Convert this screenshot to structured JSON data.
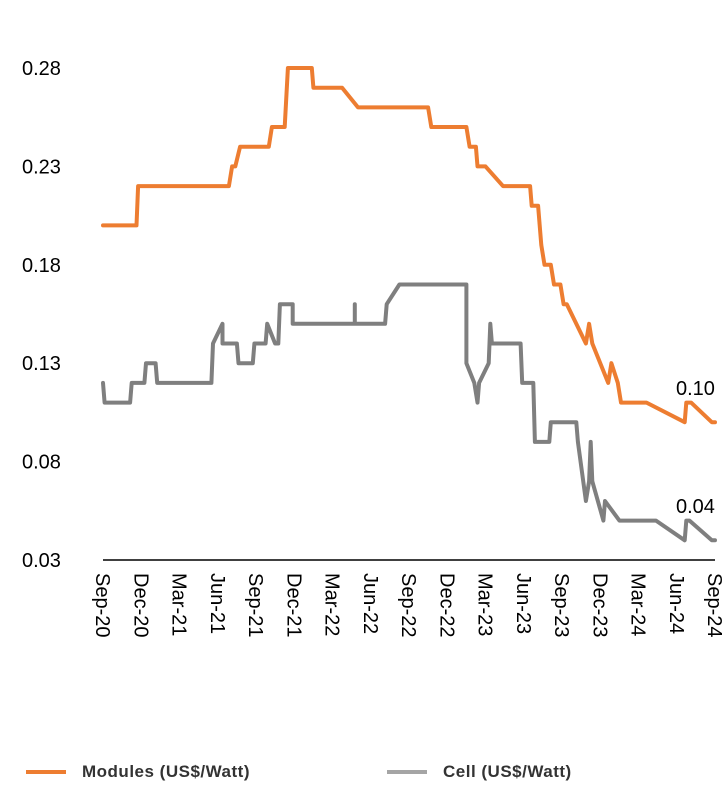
{
  "chart_data": {
    "type": "line",
    "ylim": [
      0.03,
      0.28
    ],
    "yticks": [
      "0.28",
      "0.23",
      "0.18",
      "0.13",
      "0.08",
      "0.03"
    ],
    "xticks": [
      "Sep-20",
      "Dec-20",
      "Mar-21",
      "Jun-21",
      "Sep-21",
      "Dec-21",
      "Mar-22",
      "Jun-22",
      "Sep-22",
      "Dec-22",
      "Mar-23",
      "Jun-23",
      "Sep-23",
      "Dec-23",
      "Mar-24",
      "Jun-24",
      "Sep-24"
    ],
    "end_labels": {
      "modules": "0.10",
      "cell": "0.04"
    },
    "series": [
      {
        "name": "Modules (US$/Watt)",
        "color": "#ED7D31",
        "points": [
          [
            0,
            0.2
          ],
          [
            1.05,
            0.2
          ],
          [
            1.1,
            0.22
          ],
          [
            1.3,
            0.22
          ],
          [
            2.5,
            0.22
          ],
          [
            2.6,
            0.22
          ],
          [
            3.0,
            0.22
          ],
          [
            3.2,
            0.22
          ],
          [
            3.3,
            0.22
          ],
          [
            3.4,
            0.22
          ],
          [
            3.85,
            0.22
          ],
          [
            3.95,
            0.22
          ],
          [
            4.05,
            0.23
          ],
          [
            4.15,
            0.23
          ],
          [
            4.3,
            0.24
          ],
          [
            4.4,
            0.24
          ],
          [
            5.2,
            0.24
          ],
          [
            5.3,
            0.25
          ],
          [
            5.5,
            0.25
          ],
          [
            5.6,
            0.25
          ],
          [
            5.7,
            0.25
          ],
          [
            5.8,
            0.28
          ],
          [
            6.0,
            0.28
          ],
          [
            6.55,
            0.28
          ],
          [
            6.6,
            0.27
          ],
          [
            6.75,
            0.27
          ],
          [
            7.4,
            0.27
          ],
          [
            7.5,
            0.27
          ],
          [
            8.0,
            0.26
          ],
          [
            8.15,
            0.26
          ],
          [
            9.4,
            0.26
          ],
          [
            9.5,
            0.26
          ],
          [
            10.2,
            0.26
          ],
          [
            10.3,
            0.25
          ],
          [
            10.5,
            0.25
          ],
          [
            10.65,
            0.25
          ],
          [
            11.25,
            0.25
          ],
          [
            11.4,
            0.25
          ],
          [
            11.5,
            0.24
          ],
          [
            11.7,
            0.24
          ],
          [
            11.75,
            0.23
          ],
          [
            12.0,
            0.23
          ],
          [
            12.55,
            0.22
          ],
          [
            12.7,
            0.22
          ],
          [
            12.75,
            0.22
          ],
          [
            12.8,
            0.22
          ],
          [
            13.0,
            0.22
          ],
          [
            13.05,
            0.22
          ],
          [
            13.2,
            0.22
          ],
          [
            13.4,
            0.22
          ],
          [
            13.45,
            0.21
          ],
          [
            13.65,
            0.21
          ],
          [
            13.75,
            0.19
          ],
          [
            13.85,
            0.18
          ],
          [
            13.95,
            0.18
          ],
          [
            14.05,
            0.18
          ],
          [
            14.15,
            0.17
          ],
          [
            14.35,
            0.17
          ],
          [
            14.45,
            0.16
          ],
          [
            14.55,
            0.16
          ],
          [
            15.15,
            0.14
          ],
          [
            15.25,
            0.15
          ],
          [
            15.35,
            0.14
          ],
          [
            15.85,
            0.12
          ],
          [
            15.95,
            0.13
          ],
          [
            16.15,
            0.12
          ],
          [
            16.25,
            0.11
          ],
          [
            16.45,
            0.11
          ],
          [
            17.05,
            0.11
          ],
          [
            18.25,
            0.1
          ],
          [
            18.3,
            0.11
          ],
          [
            18.45,
            0.11
          ],
          [
            19.1,
            0.1
          ],
          [
            19.2,
            0.1
          ]
        ]
      },
      {
        "name": "Cell (US$/Watt)",
        "color": "#7F7F7F",
        "points": [
          [
            0,
            0.12
          ],
          [
            0.05,
            0.11
          ],
          [
            0.85,
            0.11
          ],
          [
            0.9,
            0.12
          ],
          [
            1.2,
            0.12
          ],
          [
            1.3,
            0.12
          ],
          [
            1.35,
            0.13
          ],
          [
            1.65,
            0.13
          ],
          [
            1.7,
            0.12
          ],
          [
            2.2,
            0.12
          ],
          [
            2.8,
            0.12
          ],
          [
            3.3,
            0.12
          ],
          [
            3.35,
            0.12
          ],
          [
            3.4,
            0.12
          ],
          [
            3.45,
            0.14
          ],
          [
            3.75,
            0.15
          ],
          [
            3.75,
            0.14
          ],
          [
            4.2,
            0.14
          ],
          [
            4.25,
            0.13
          ],
          [
            4.7,
            0.13
          ],
          [
            4.75,
            0.14
          ],
          [
            5.1,
            0.14
          ],
          [
            5.15,
            0.15
          ],
          [
            5.4,
            0.14
          ],
          [
            5.45,
            0.14
          ],
          [
            5.5,
            0.14
          ],
          [
            5.55,
            0.16
          ],
          [
            5.95,
            0.16
          ],
          [
            5.95,
            0.15
          ],
          [
            6.6,
            0.15
          ],
          [
            7.0,
            0.15
          ],
          [
            7.6,
            0.15
          ],
          [
            7.9,
            0.15
          ],
          [
            7.9,
            0.16
          ],
          [
            7.9,
            0.15
          ],
          [
            8.85,
            0.15
          ],
          [
            8.9,
            0.16
          ],
          [
            9.3,
            0.17
          ],
          [
            11.25,
            0.17
          ],
          [
            11.4,
            0.17
          ],
          [
            11.4,
            0.13
          ],
          [
            11.65,
            0.12
          ],
          [
            11.75,
            0.11
          ],
          [
            11.8,
            0.12
          ],
          [
            12.1,
            0.13
          ],
          [
            12.15,
            0.15
          ],
          [
            12.2,
            0.14
          ],
          [
            13.1,
            0.14
          ],
          [
            13.15,
            0.12
          ],
          [
            13.5,
            0.12
          ],
          [
            13.55,
            0.09
          ],
          [
            14.0,
            0.09
          ],
          [
            14.05,
            0.1
          ],
          [
            14.85,
            0.1
          ],
          [
            14.9,
            0.09
          ],
          [
            15.15,
            0.06
          ],
          [
            15.25,
            0.07
          ],
          [
            15.3,
            0.09
          ],
          [
            15.35,
            0.07
          ],
          [
            15.7,
            0.05
          ],
          [
            15.75,
            0.06
          ],
          [
            16.2,
            0.05
          ],
          [
            16.35,
            0.05
          ],
          [
            17.35,
            0.05
          ],
          [
            18.25,
            0.04
          ],
          [
            18.3,
            0.05
          ],
          [
            18.4,
            0.05
          ],
          [
            19.1,
            0.04
          ],
          [
            19.2,
            0.04
          ]
        ]
      }
    ]
  }
}
